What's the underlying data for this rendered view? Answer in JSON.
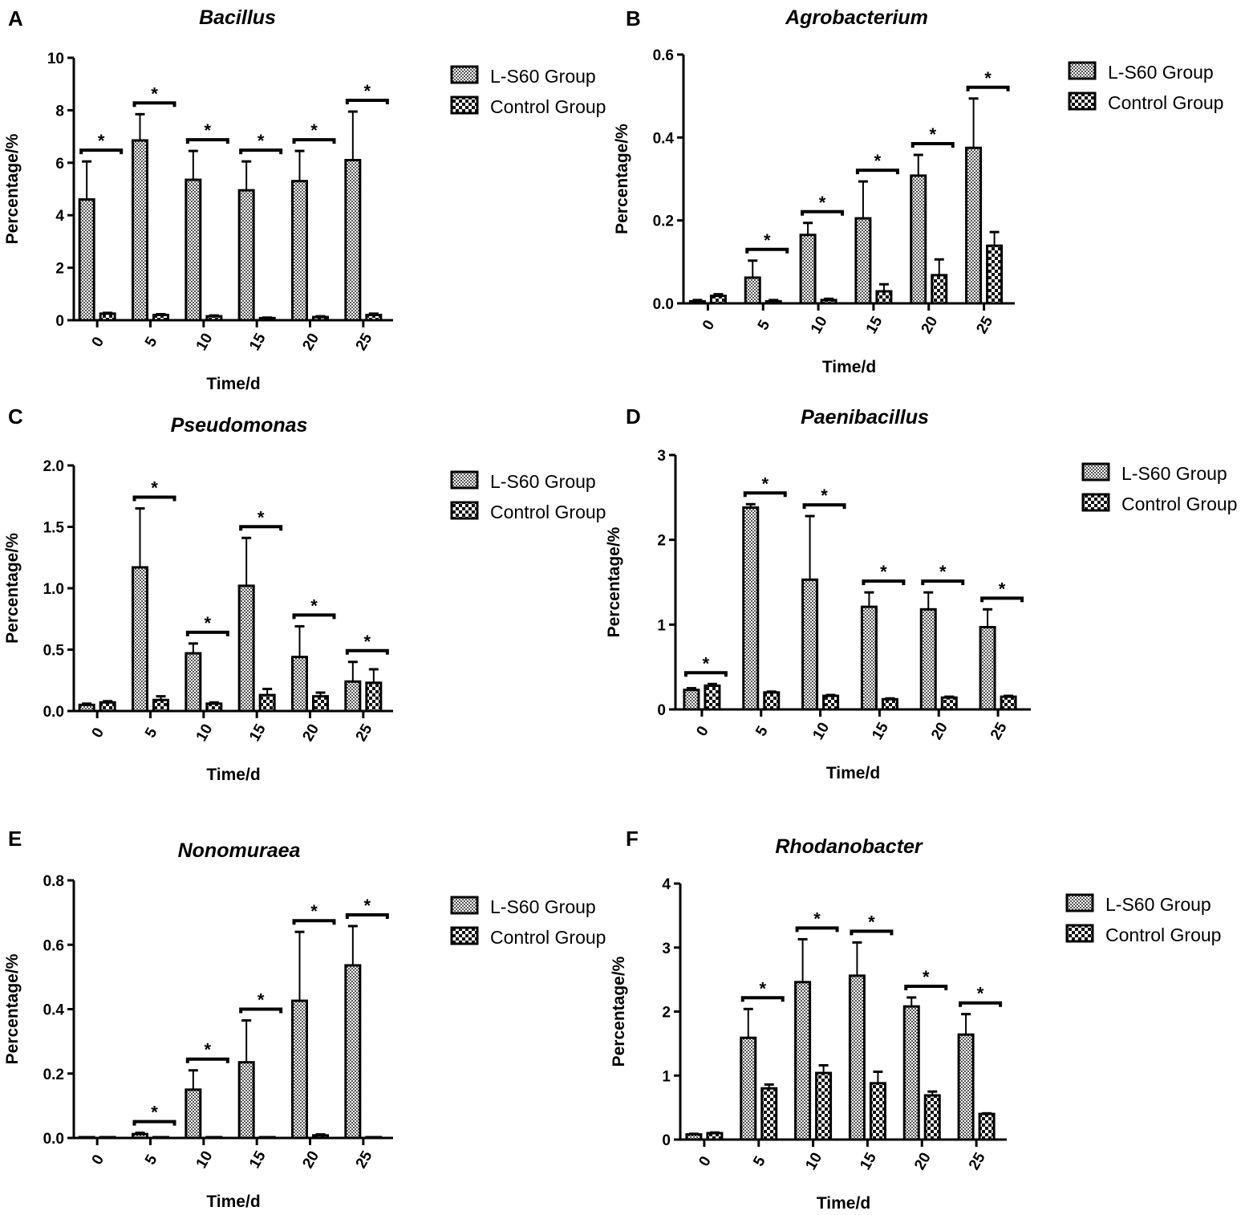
{
  "legend": [
    "L-S60 Group",
    "Control Group"
  ],
  "chart_data": [
    {
      "type": "bar",
      "panel": "A",
      "title": "Bacillus",
      "xlabel": "Time/d",
      "ylabel": "Percentage/%",
      "ylim": [
        0,
        10
      ],
      "yticks": [
        "0",
        "2",
        "4",
        "6",
        "8",
        "10"
      ],
      "ytick_values": [
        0,
        2,
        4,
        6,
        8,
        10
      ],
      "categories": [
        "0",
        "5",
        "10",
        "15",
        "20",
        "25"
      ],
      "series": [
        {
          "name": "L-S60 Group",
          "values": [
            4.6,
            6.85,
            5.35,
            4.95,
            5.3,
            6.1
          ],
          "errors": [
            1.45,
            1.0,
            1.1,
            1.1,
            1.15,
            1.85
          ]
        },
        {
          "name": "Control Group",
          "values": [
            0.25,
            0.2,
            0.15,
            0.08,
            0.12,
            0.2
          ],
          "errors": [
            0.03,
            0.03,
            0.03,
            0.02,
            0.03,
            0.05
          ]
        }
      ],
      "significance": [
        "*",
        "*",
        "*",
        "*",
        "*",
        "*"
      ]
    },
    {
      "type": "bar",
      "panel": "B",
      "title": "Agrobacterium",
      "xlabel": "Time/d",
      "ylabel": "Percentage/%",
      "ylim": [
        0,
        0.6
      ],
      "yticks": [
        "0.0",
        "0.2",
        "0.4",
        "0.6"
      ],
      "ytick_values": [
        0,
        0.2,
        0.4,
        0.6
      ],
      "categories": [
        "0",
        "5",
        "10",
        "15",
        "20",
        "25"
      ],
      "series": [
        {
          "name": "L-S60 Group",
          "values": [
            0.005,
            0.062,
            0.165,
            0.205,
            0.308,
            0.375
          ],
          "errors": [
            0.003,
            0.041,
            0.029,
            0.089,
            0.05,
            0.119
          ]
        },
        {
          "name": "Control Group",
          "values": [
            0.018,
            0.005,
            0.008,
            0.029,
            0.068,
            0.139
          ],
          "errors": [
            0.004,
            0.003,
            0.003,
            0.017,
            0.038,
            0.033
          ]
        }
      ],
      "significance": [
        "",
        "*",
        "*",
        "*",
        "*",
        "*"
      ]
    },
    {
      "type": "bar",
      "panel": "C",
      "title": "Pseudomonas",
      "xlabel": "Time/d",
      "ylabel": "Percentage/%",
      "ylim": [
        0,
        2.0
      ],
      "yticks": [
        "0.0",
        "0.5",
        "1.0",
        "1.5",
        "2.0"
      ],
      "ytick_values": [
        0,
        0.5,
        1,
        1.5,
        2
      ],
      "categories": [
        "0",
        "5",
        "10",
        "15",
        "20",
        "25"
      ],
      "series": [
        {
          "name": "L-S60 Group",
          "values": [
            0.05,
            1.17,
            0.47,
            1.02,
            0.44,
            0.24
          ],
          "errors": [
            0.01,
            0.48,
            0.08,
            0.39,
            0.25,
            0.16
          ]
        },
        {
          "name": "Control Group",
          "values": [
            0.07,
            0.09,
            0.06,
            0.13,
            0.12,
            0.23
          ],
          "errors": [
            0.01,
            0.03,
            0.01,
            0.05,
            0.03,
            0.11
          ]
        }
      ],
      "significance": [
        "",
        "*",
        "*",
        "*",
        "*",
        "*"
      ]
    },
    {
      "type": "bar",
      "panel": "D",
      "title": "Paenibacillus",
      "xlabel": "Time/d",
      "ylabel": "Percentage/%",
      "ylim": [
        0,
        3
      ],
      "yticks": [
        "0",
        "1",
        "2",
        "3"
      ],
      "ytick_values": [
        0,
        1,
        2,
        3
      ],
      "categories": [
        "0",
        "5",
        "10",
        "15",
        "20",
        "25"
      ],
      "series": [
        {
          "name": "L-S60 Group",
          "values": [
            0.23,
            2.38,
            1.53,
            1.21,
            1.18,
            0.97
          ],
          "errors": [
            0.02,
            0.04,
            0.75,
            0.17,
            0.2,
            0.21
          ]
        },
        {
          "name": "Control Group",
          "values": [
            0.28,
            0.2,
            0.16,
            0.12,
            0.14,
            0.15
          ],
          "errors": [
            0.02,
            0.01,
            0.01,
            0.01,
            0.01,
            0.01
          ]
        }
      ],
      "significance": [
        "*",
        "*",
        "*",
        "*",
        "*",
        "*"
      ]
    },
    {
      "type": "bar",
      "panel": "E",
      "title": "Nonomuraea",
      "xlabel": "Time/d",
      "ylabel": "Percentage/%",
      "ylim": [
        0,
        0.8
      ],
      "yticks": [
        "0.0",
        "0.2",
        "0.4",
        "0.6",
        "0.8"
      ],
      "ytick_values": [
        0,
        0.2,
        0.4,
        0.6,
        0.8
      ],
      "categories": [
        "0",
        "5",
        "10",
        "15",
        "20",
        "25"
      ],
      "series": [
        {
          "name": "L-S60 Group",
          "values": [
            0,
            0.012,
            0.15,
            0.235,
            0.426,
            0.536
          ],
          "errors": [
            0,
            0.004,
            0.06,
            0.13,
            0.214,
            0.122
          ]
        },
        {
          "name": "Control Group",
          "values": [
            0,
            0,
            0.002,
            0.002,
            0.008,
            0
          ],
          "errors": [
            0,
            0,
            0,
            0,
            0.003,
            0
          ]
        }
      ],
      "significance": [
        "",
        "*",
        "*",
        "*",
        "*",
        "*"
      ]
    },
    {
      "type": "bar",
      "panel": "F",
      "title": "Rhodanobacter",
      "xlabel": "Time/d",
      "ylabel": "Percentage/%",
      "ylim": [
        0,
        4
      ],
      "yticks": [
        "0",
        "1",
        "2",
        "3",
        "4"
      ],
      "ytick_values": [
        0,
        1,
        2,
        3,
        4
      ],
      "categories": [
        "0",
        "5",
        "10",
        "15",
        "20",
        "25"
      ],
      "series": [
        {
          "name": "L-S60 Group",
          "values": [
            0.08,
            1.59,
            2.46,
            2.56,
            2.08,
            1.64
          ],
          "errors": [
            0.01,
            0.45,
            0.67,
            0.52,
            0.14,
            0.32
          ]
        },
        {
          "name": "Control Group",
          "values": [
            0.1,
            0.8,
            1.04,
            0.88,
            0.69,
            0.4
          ],
          "errors": [
            0.01,
            0.06,
            0.12,
            0.18,
            0.06,
            0.01
          ]
        }
      ],
      "significance": [
        "",
        "*",
        "*",
        "*",
        "*",
        "*"
      ]
    }
  ]
}
